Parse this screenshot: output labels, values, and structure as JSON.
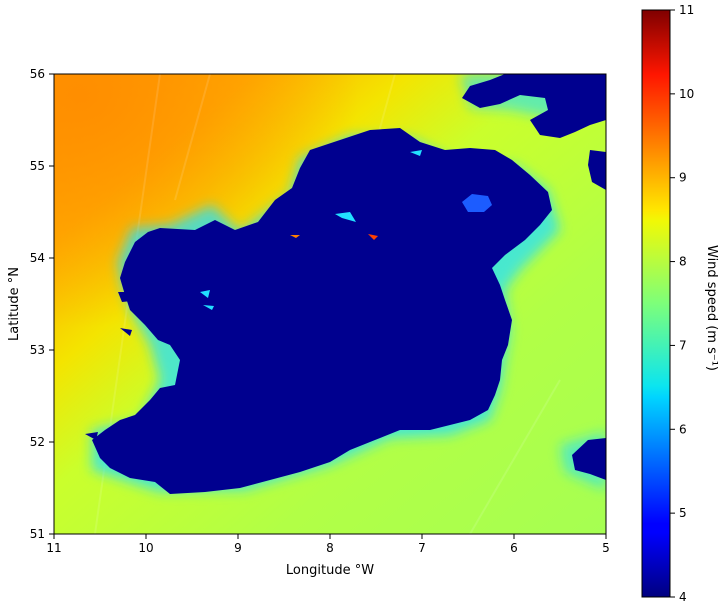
{
  "chart_data": {
    "type": "heatmap",
    "title": "",
    "xlabel": "Longitude °W",
    "ylabel": "Latitude °N",
    "xlim": [
      11,
      5
    ],
    "ylim": [
      51,
      56
    ],
    "x_ticks": [
      "11",
      "10",
      "9",
      "8",
      "7",
      "6",
      "5"
    ],
    "y_ticks": [
      "51",
      "52",
      "53",
      "54",
      "55",
      "56"
    ],
    "colorbar": {
      "label": "Wind speed (m s⁻¹)",
      "range": [
        4,
        11
      ],
      "ticks": [
        "4",
        "5",
        "6",
        "7",
        "8",
        "9",
        "10",
        "11"
      ],
      "colormap": "jet"
    },
    "land_color": "#00008f",
    "notes": "Sea surface wind speed field; higher speeds (~9–9.5) in the north-west Atlantic, ~8 off the west and south coasts, lowest (~5–6.5) close to the coastline; land masked at the colormap minimum."
  }
}
